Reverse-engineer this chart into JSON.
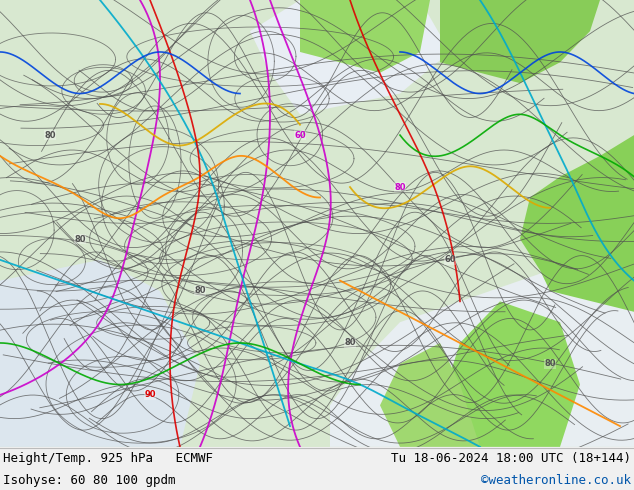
{
  "title_left": "Height/Temp. 925 hPa   ECMWF",
  "title_right": "Tu 18-06-2024 18:00 UTC (18+144)",
  "label_left": "Isohyse: 60 80 100 gpdm",
  "label_right": "©weatheronline.co.uk",
  "label_right_color": "#0055aa",
  "bottom_bg_color": "#f0f0f0",
  "figsize": [
    6.34,
    4.9
  ],
  "dpi": 100,
  "font_size_title": 9.0,
  "font_size_label": 9.0,
  "sea_color": "#dce8f0",
  "land_color_main": "#c8e8b8",
  "land_color_bright": "#a8e888",
  "map_bg": "#e0ece0"
}
